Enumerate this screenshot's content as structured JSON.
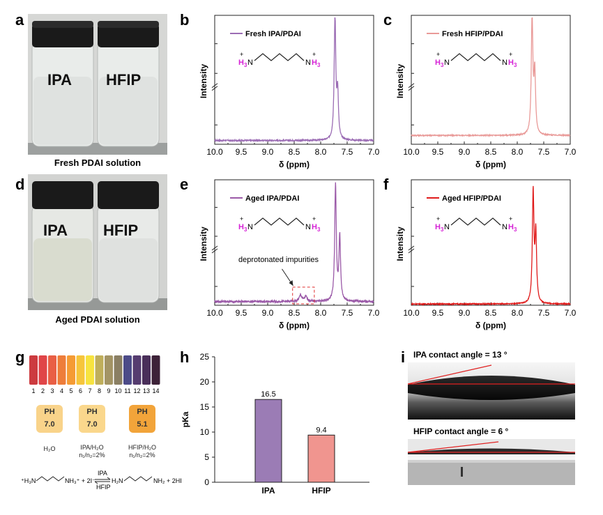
{
  "panels": {
    "a": {
      "letter": "a",
      "caption": "Fresh PDAI solution",
      "vial1": "IPA",
      "vial2": "HFIP"
    },
    "d": {
      "letter": "d",
      "caption": "Aged PDAI solution",
      "vial1": "IPA",
      "vial2": "HFIP"
    },
    "b": {
      "letter": "b"
    },
    "c": {
      "letter": "c"
    },
    "e": {
      "letter": "e"
    },
    "f": {
      "letter": "f"
    },
    "g": {
      "letter": "g"
    },
    "h": {
      "letter": "h"
    },
    "i": {
      "letter": "i"
    }
  },
  "chart_data": [
    {
      "id": "b",
      "type": "line",
      "legend": "Fresh IPA/PDAI",
      "color": "#9b6cb4",
      "xlabel": "δ (ppm)",
      "ylabel": "Intensity",
      "xlim": [
        10.0,
        7.0
      ],
      "xticks": [
        "10.0",
        "9.5",
        "9.0",
        "8.5",
        "8.0",
        "7.5",
        "7.0"
      ],
      "peaks": [
        {
          "x": 7.73,
          "h": 0.98
        },
        {
          "x": 7.68,
          "h": 0.36
        }
      ],
      "baseline": 0.03,
      "noise": 0.005
    },
    {
      "id": "c",
      "type": "line",
      "legend": "Fresh HFIP/PDAI",
      "color": "#e99a98",
      "xlabel": "δ (ppm)",
      "ylabel": "Intensity",
      "xlim": [
        10.0,
        7.0
      ],
      "xticks": [
        "10.0",
        "9.5",
        "9.0",
        "8.5",
        "8.0",
        "7.5",
        "7.0"
      ],
      "peaks": [
        {
          "x": 7.72,
          "h": 0.93
        },
        {
          "x": 7.67,
          "h": 0.48
        }
      ],
      "baseline": 0.07,
      "noise": 0.004
    },
    {
      "id": "e",
      "type": "line",
      "legend": "Aged IPA/PDAI",
      "color": "#9b5aa8",
      "xlabel": "δ (ppm)",
      "ylabel": "Intensity",
      "xlim": [
        10.0,
        7.0
      ],
      "xticks": [
        "10.0",
        "9.5",
        "9.0",
        "8.5",
        "8.0",
        "7.5",
        "7.0"
      ],
      "peaks": [
        {
          "x": 7.72,
          "h": 0.95
        },
        {
          "x": 7.64,
          "h": 0.52
        },
        {
          "x": 8.38,
          "h": 0.05
        },
        {
          "x": 8.28,
          "h": 0.04
        }
      ],
      "baseline": 0.03,
      "noise": 0.008,
      "annotation": "deprotonated impurities"
    },
    {
      "id": "f",
      "type": "line",
      "legend": "Aged HFIP/PDAI",
      "color": "#e01b1b",
      "xlabel": "δ (ppm)",
      "ylabel": "Intensity",
      "xlim": [
        10.0,
        7.0
      ],
      "xticks": [
        "10.0",
        "9.5",
        "9.0",
        "8.5",
        "8.0",
        "7.5",
        "7.0"
      ],
      "peaks": [
        {
          "x": 7.7,
          "h": 0.9
        },
        {
          "x": 7.65,
          "h": 0.55
        }
      ],
      "baseline": 0.01,
      "noise": 0.004
    },
    {
      "id": "h",
      "type": "bar",
      "categories": [
        "IPA",
        "HFIP"
      ],
      "values": [
        16.5,
        9.4
      ],
      "value_labels": [
        "16.5",
        "9.4"
      ],
      "colors": [
        "#9b7cb5",
        "#f0958f"
      ],
      "ylabel": "pKa",
      "ylim": [
        0,
        25
      ],
      "yticks": [
        "0",
        "5",
        "10",
        "15",
        "20",
        "25"
      ]
    }
  ],
  "molecule": {
    "left": "H3N",
    "right": "NH3",
    "plus": "+",
    "h": "H",
    "sub": "3",
    "n": "N"
  },
  "ph_scale": {
    "numbers": [
      "1",
      "2",
      "3",
      "4",
      "5",
      "6",
      "7",
      "8",
      "9",
      "10",
      "11",
      "12",
      "13",
      "14"
    ],
    "colors": [
      "#cc3b3f",
      "#e04548",
      "#e95f45",
      "#ee7d3a",
      "#f59b34",
      "#f6c53b",
      "#f7e33f",
      "#bfae5b",
      "#a39465",
      "#8a7f63",
      "#4c4b88",
      "#553c70",
      "#4a2f5a",
      "#3d2238"
    ]
  },
  "ph_cards": [
    {
      "label": "PH",
      "value": "7.0",
      "color": "#f9d38a",
      "solvent": "H₂O",
      "ratio": ""
    },
    {
      "label": "PH",
      "value": "7.0",
      "color": "#fad78c",
      "solvent": "IPA/H₂O",
      "ratio": "n₁/n₂=2%"
    },
    {
      "label": "PH",
      "value": "5.1",
      "color": "#f2a43a",
      "solvent": "HFIP/H₂O",
      "ratio": "n₁/n₂=2%"
    }
  ],
  "equation": {
    "lhs": "⁺H₃N",
    "lhs2": "NH₃⁺ + 2I⁻",
    "top": "IPA",
    "bottom": "HFIP",
    "rhs": "H₂N",
    "rhs2": "NH₂ + 2HI"
  },
  "contact_angles": {
    "ipa": "IPA contact angle = 13 °",
    "hfip": "HFIP contact angle = 6 °"
  }
}
